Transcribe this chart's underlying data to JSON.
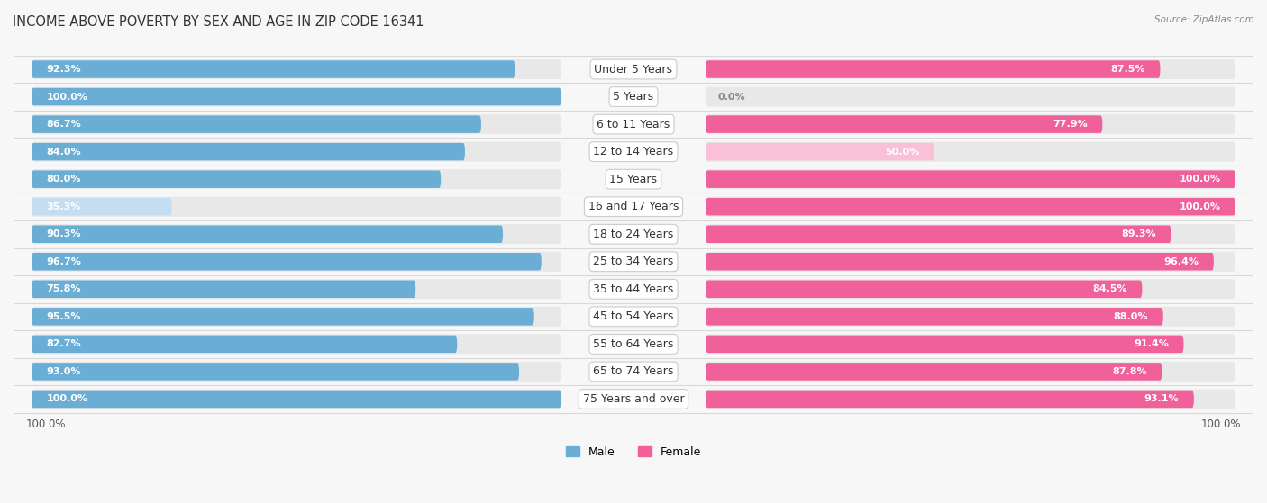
{
  "title": "INCOME ABOVE POVERTY BY SEX AND AGE IN ZIP CODE 16341",
  "source": "Source: ZipAtlas.com",
  "categories": [
    "Under 5 Years",
    "5 Years",
    "6 to 11 Years",
    "12 to 14 Years",
    "15 Years",
    "16 and 17 Years",
    "18 to 24 Years",
    "25 to 34 Years",
    "35 to 44 Years",
    "45 to 54 Years",
    "55 to 64 Years",
    "65 to 74 Years",
    "75 Years and over"
  ],
  "male_values": [
    92.3,
    100.0,
    86.7,
    84.0,
    80.0,
    35.3,
    90.3,
    96.7,
    75.8,
    95.5,
    82.7,
    93.0,
    100.0
  ],
  "female_values": [
    87.5,
    0.0,
    77.9,
    50.0,
    100.0,
    100.0,
    89.3,
    96.4,
    84.5,
    88.0,
    91.4,
    87.8,
    93.1
  ],
  "male_color": "#6aaed6",
  "female_color": "#f0609a",
  "male_light_color": "#c5ddf0",
  "female_light_color": "#f9c0d8",
  "track_color": "#e8e8e8",
  "background_color": "#f7f7f7",
  "title_fontsize": 10.5,
  "label_fontsize": 8.5,
  "value_fontsize": 8.0,
  "max_value": 100.0,
  "xlabel_bottom_left": "100.0%",
  "xlabel_bottom_right": "100.0%"
}
